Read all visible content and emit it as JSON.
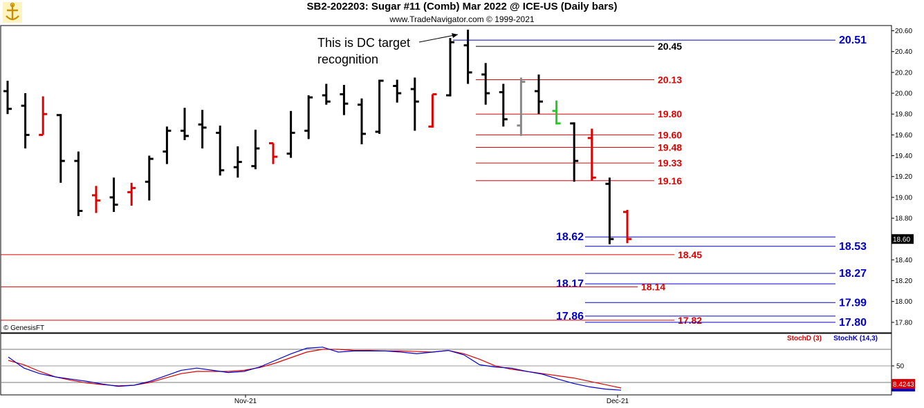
{
  "header": {
    "title": "SB2-202203:  Sugar #11 (Comb) Mar 2022 @ ICE-US  (Daily bars)",
    "subtitle": "www.TradeNavigator.com © 1999-2021"
  },
  "copyright": "© GenesisFT",
  "annotation": {
    "line1": "This is DC target",
    "line2": "recognition"
  },
  "colors": {
    "up_bar": "#000000",
    "down_bar": "#e00000",
    "blue": "#0000cc",
    "red": "#e00000"
  },
  "chart_data": [
    {
      "type": "ohlc",
      "yaxis": {
        "min": 17.7,
        "max": 20.65,
        "ticks": [
          "20.60",
          "20.40",
          "20.20",
          "20.00",
          "19.80",
          "19.60",
          "19.40",
          "19.20",
          "19.00",
          "18.80",
          "18.60",
          "18.40",
          "18.20",
          "18.00",
          "17.80"
        ]
      },
      "last_price": "18.60",
      "bars": [
        {
          "o": 20.02,
          "h": 20.12,
          "l": 19.8,
          "c": 19.85,
          "color": "black"
        },
        {
          "o": 19.88,
          "h": 20.0,
          "l": 19.47,
          "c": 19.6,
          "color": "black"
        },
        {
          "o": 19.6,
          "h": 19.97,
          "l": 19.6,
          "c": 19.8,
          "color": "red"
        },
        {
          "o": 19.79,
          "h": 19.8,
          "l": 19.14,
          "c": 19.35,
          "color": "black"
        },
        {
          "o": 19.35,
          "h": 19.44,
          "l": 18.82,
          "c": 18.87,
          "color": "black"
        },
        {
          "o": 19.02,
          "h": 19.11,
          "l": 18.85,
          "c": 18.97,
          "color": "red"
        },
        {
          "o": 19.0,
          "h": 19.19,
          "l": 18.86,
          "c": 18.93,
          "color": "black"
        },
        {
          "o": 19.05,
          "h": 19.14,
          "l": 18.92,
          "c": 19.09,
          "color": "red"
        },
        {
          "o": 19.15,
          "h": 19.4,
          "l": 18.97,
          "c": 19.37,
          "color": "black"
        },
        {
          "o": 19.44,
          "h": 19.68,
          "l": 19.32,
          "c": 19.64,
          "color": "black"
        },
        {
          "o": 19.64,
          "h": 19.86,
          "l": 19.55,
          "c": 19.59,
          "color": "black"
        },
        {
          "o": 19.7,
          "h": 19.84,
          "l": 19.47,
          "c": 19.67,
          "color": "black"
        },
        {
          "o": 19.62,
          "h": 19.69,
          "l": 19.21,
          "c": 19.26,
          "color": "black"
        },
        {
          "o": 19.29,
          "h": 19.49,
          "l": 19.19,
          "c": 19.34,
          "color": "black"
        },
        {
          "o": 19.3,
          "h": 19.65,
          "l": 19.27,
          "c": 19.47,
          "color": "black"
        },
        {
          "o": 19.52,
          "h": 19.52,
          "l": 19.32,
          "c": 19.39,
          "color": "red"
        },
        {
          "o": 19.42,
          "h": 19.83,
          "l": 19.38,
          "c": 19.62,
          "color": "black"
        },
        {
          "o": 19.64,
          "h": 19.98,
          "l": 19.56,
          "c": 19.96,
          "color": "black"
        },
        {
          "o": 19.98,
          "h": 20.09,
          "l": 19.89,
          "c": 19.92,
          "color": "black"
        },
        {
          "o": 19.99,
          "h": 20.08,
          "l": 19.79,
          "c": 19.9,
          "color": "black"
        },
        {
          "o": 19.89,
          "h": 19.95,
          "l": 19.51,
          "c": 19.61,
          "color": "black"
        },
        {
          "o": 19.63,
          "h": 20.13,
          "l": 19.61,
          "c": 20.12,
          "color": "black"
        },
        {
          "o": 20.07,
          "h": 20.13,
          "l": 19.91,
          "c": 20.0,
          "color": "black"
        },
        {
          "o": 20.04,
          "h": 20.15,
          "l": 19.64,
          "c": 19.92,
          "color": "black"
        },
        {
          "o": 19.68,
          "h": 19.99,
          "l": 19.67,
          "c": 19.99,
          "color": "red"
        },
        {
          "o": 19.98,
          "h": 20.53,
          "l": 19.97,
          "c": 20.49,
          "color": "black"
        },
        {
          "o": 20.46,
          "h": 20.61,
          "l": 20.09,
          "c": 20.2,
          "color": "black"
        },
        {
          "o": 20.18,
          "h": 20.29,
          "l": 19.89,
          "c": 20.0,
          "color": "black"
        },
        {
          "o": 20.01,
          "h": 20.09,
          "l": 19.68,
          "c": 19.75,
          "color": "black"
        },
        {
          "o": 19.69,
          "h": 20.15,
          "l": 19.59,
          "c": 20.11,
          "color": "gray"
        },
        {
          "o": 20.02,
          "h": 20.18,
          "l": 19.8,
          "c": 19.92,
          "color": "black"
        },
        {
          "o": 19.83,
          "h": 19.93,
          "l": 19.7,
          "c": 19.71,
          "color": "green"
        },
        {
          "o": 19.71,
          "h": 19.72,
          "l": 19.15,
          "c": 19.35,
          "color": "black"
        },
        {
          "o": 19.57,
          "h": 19.66,
          "l": 19.16,
          "c": 19.19,
          "color": "red"
        },
        {
          "o": 19.13,
          "h": 19.19,
          "l": 18.55,
          "c": 18.6,
          "color": "black"
        },
        {
          "o": 18.86,
          "h": 18.88,
          "l": 18.56,
          "c": 18.6,
          "color": "red"
        }
      ],
      "levels": [
        {
          "value": 20.51,
          "label": "20.51",
          "color": "blue"
        },
        {
          "value": 20.45,
          "label": "20.45",
          "color": "black"
        },
        {
          "value": 20.13,
          "label": "20.13",
          "color": "red"
        },
        {
          "value": 19.8,
          "label": "19.80",
          "color": "red"
        },
        {
          "value": 19.6,
          "label": "19.60",
          "color": "red"
        },
        {
          "value": 19.48,
          "label": "19.48",
          "color": "red"
        },
        {
          "value": 19.33,
          "label": "19.33",
          "color": "red"
        },
        {
          "value": 19.16,
          "label": "19.16",
          "color": "red"
        },
        {
          "value": 18.62,
          "label": "18.62",
          "color": "blue"
        },
        {
          "value": 18.53,
          "label": "18.53",
          "color": "blue"
        },
        {
          "value": 18.45,
          "label": "18.45",
          "color": "red"
        },
        {
          "value": 18.27,
          "label": "18.27",
          "color": "blue"
        },
        {
          "value": 18.17,
          "label": "18.17",
          "color": "blue"
        },
        {
          "value": 18.14,
          "label": "18.14",
          "color": "red"
        },
        {
          "value": 17.99,
          "label": "17.99",
          "color": "blue"
        },
        {
          "value": 17.86,
          "label": "17.86",
          "color": "blue"
        },
        {
          "value": 17.82,
          "label": "17.82",
          "color": "red"
        },
        {
          "value": 17.8,
          "label": "17.80",
          "color": "blue"
        }
      ],
      "xlabels": [
        "Nov-21",
        "Dec-21"
      ]
    },
    {
      "type": "line",
      "yaxis": {
        "ticks": [
          "50"
        ]
      },
      "legend": [
        "StochD (3)",
        "StochK (14,3)"
      ],
      "last_value": "8.4243",
      "series": [
        {
          "name": "StochD (3)",
          "color": "red",
          "values": [
            60,
            52,
            40,
            30,
            24,
            19,
            16,
            14,
            15,
            20,
            28,
            36,
            40,
            40,
            40,
            42,
            47,
            55,
            65,
            75,
            80,
            80,
            78,
            78,
            77,
            77,
            76,
            75,
            78,
            72,
            62,
            50,
            44,
            40,
            36,
            32,
            28,
            22,
            16,
            10
          ]
        },
        {
          "name": "StochK (14,3)",
          "color": "blue",
          "values": [
            66,
            46,
            36,
            30,
            26,
            22,
            17,
            13,
            15,
            22,
            32,
            42,
            46,
            42,
            38,
            40,
            48,
            60,
            72,
            82,
            84,
            75,
            77,
            77,
            77,
            75,
            72,
            75,
            78,
            70,
            52,
            48,
            46,
            40,
            35,
            26,
            18,
            12,
            8,
            6
          ]
        }
      ]
    }
  ]
}
